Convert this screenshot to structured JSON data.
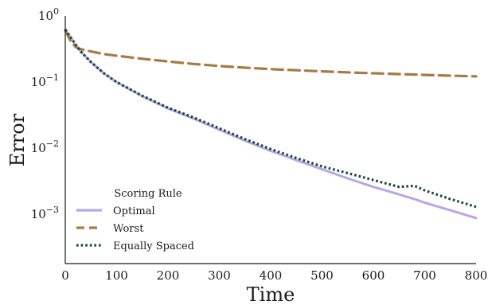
{
  "chart_data": {
    "type": "line",
    "title": "",
    "xlabel": "Time",
    "ylabel": "Error",
    "xlim": [
      0,
      800
    ],
    "ylim": [
      0.00018,
      1.0
    ],
    "yscale": "log",
    "grid": false,
    "legend": {
      "title": "Scoring Rule",
      "position": "bottom-left"
    },
    "x_ticks": [
      0,
      100,
      200,
      300,
      400,
      500,
      600,
      700,
      800
    ],
    "x_tick_labels": [
      "0",
      "100",
      "200",
      "300",
      "400",
      "500",
      "600",
      "700",
      "800"
    ],
    "y_ticks": [
      1.0,
      0.1,
      0.01,
      0.001
    ],
    "y_tick_labels": [
      {
        "base": "10",
        "exp": "0"
      },
      {
        "base": "10",
        "exp": "−1"
      },
      {
        "base": "10",
        "exp": "−2"
      },
      {
        "base": "10",
        "exp": "−3"
      }
    ],
    "x": [
      0,
      10,
      20,
      30,
      50,
      75,
      100,
      150,
      200,
      250,
      300,
      350,
      400,
      450,
      500,
      550,
      600,
      650,
      680,
      700,
      750,
      800
    ],
    "series": [
      {
        "name": "Optimal",
        "color": "#b9a6e4",
        "style": "solid",
        "values": [
          0.62,
          0.48,
          0.37,
          0.29,
          0.2,
          0.136,
          0.1,
          0.061,
          0.04,
          0.028,
          0.019,
          0.013,
          0.0091,
          0.0066,
          0.0048,
          0.0035,
          0.0026,
          0.002,
          0.0017,
          0.0015,
          0.00115,
          0.00088
        ]
      },
      {
        "name": "Worst",
        "color": "#a67c45",
        "style": "dashed",
        "values": [
          0.6,
          0.42,
          0.34,
          0.315,
          0.29,
          0.265,
          0.25,
          0.225,
          0.205,
          0.188,
          0.175,
          0.165,
          0.157,
          0.151,
          0.145,
          0.14,
          0.136,
          0.132,
          0.13,
          0.128,
          0.125,
          0.122
        ]
      },
      {
        "name": "Equally Spaced",
        "color": "#16473e",
        "style": "dotted",
        "values": [
          0.62,
          0.48,
          0.37,
          0.29,
          0.2,
          0.136,
          0.1,
          0.062,
          0.041,
          0.029,
          0.02,
          0.0137,
          0.0097,
          0.0071,
          0.0053,
          0.0042,
          0.0033,
          0.0026,
          0.0027,
          0.0023,
          0.0017,
          0.0013
        ]
      }
    ]
  }
}
